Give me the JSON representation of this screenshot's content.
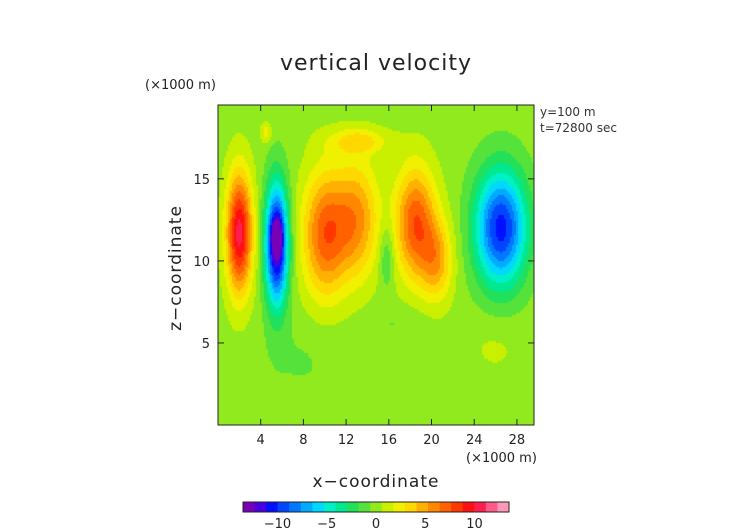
{
  "chart_data": {
    "type": "heatmap",
    "title": "vertical velocity",
    "xlabel": "x−coordinate",
    "ylabel": "z−coordinate",
    "x_unit": "(×1000 m)",
    "y_unit": "(×1000 m)",
    "annotations": [
      "y=100 m",
      "t=72800 sec"
    ],
    "xlim": [
      0,
      29.6
    ],
    "ylim": [
      0,
      19.5
    ],
    "x_ticks": [
      {
        "value": 4,
        "label": "4"
      },
      {
        "value": 8,
        "label": "8"
      },
      {
        "value": 12,
        "label": "12"
      },
      {
        "value": 16,
        "label": "16"
      },
      {
        "value": 20,
        "label": "20"
      },
      {
        "value": 24,
        "label": "24"
      },
      {
        "value": 28,
        "label": "28"
      }
    ],
    "y_ticks": [
      {
        "value": 5,
        "label": "5"
      },
      {
        "value": 10,
        "label": "10"
      },
      {
        "value": 15,
        "label": "15"
      }
    ],
    "colorbar": {
      "min": -13.5,
      "max": 13.5,
      "tick_values": [
        -10,
        -5,
        0,
        5,
        10
      ],
      "tick_labels": [
        "−10",
        "−5",
        "0",
        "5",
        "10"
      ],
      "colors": [
        "#7a00b8",
        "#4a00e0",
        "#0010ff",
        "#0046ff",
        "#0078ff",
        "#00aaff",
        "#00d8ff",
        "#00f0c8",
        "#00e890",
        "#22e05a",
        "#55e23a",
        "#90ea1e",
        "#c8f000",
        "#f0f000",
        "#ffd800",
        "#ffb000",
        "#ff8800",
        "#ff6000",
        "#ff3800",
        "#ff1010",
        "#ff1e50",
        "#ff5a8a",
        "#ff98b8"
      ]
    },
    "features": [
      {
        "x": 2.0,
        "z": 11.7,
        "sx": 1.2,
        "sz": 3.6,
        "amp": 10.5
      },
      {
        "x": 5.5,
        "z": 11.0,
        "sx": 1.05,
        "sz": 3.6,
        "amp": -13.0
      },
      {
        "x": 5.5,
        "z": 11.5,
        "sx": 0.5,
        "sz": 1.0,
        "amp": -4.5
      },
      {
        "x": 10.0,
        "z": 11.6,
        "sx": 2.1,
        "sz": 3.8,
        "amp": 7.0
      },
      {
        "x": 13.0,
        "z": 12.5,
        "sx": 2.1,
        "sz": 3.6,
        "amp": 5.5
      },
      {
        "x": 18.5,
        "z": 12.3,
        "sx": 1.9,
        "sz": 3.4,
        "amp": 7.5
      },
      {
        "x": 20.5,
        "z": 10.0,
        "sx": 1.5,
        "sz": 2.5,
        "amp": 4.5
      },
      {
        "x": 15.8,
        "z": 10.3,
        "sx": 0.7,
        "sz": 2.0,
        "amp": -2.5
      },
      {
        "x": 13.2,
        "z": 17.3,
        "sx": 2.8,
        "sz": 0.8,
        "amp": 3.0
      },
      {
        "x": 26.5,
        "z": 12.0,
        "sx": 2.4,
        "sz": 3.5,
        "amp": -10.5
      },
      {
        "x": 4.5,
        "z": 17.8,
        "sx": 0.5,
        "sz": 0.6,
        "amp": 2.5
      },
      {
        "x": 26.0,
        "z": 4.8,
        "sx": 3.0,
        "sz": 2.0,
        "amp": 0.8
      },
      {
        "x": 8.0,
        "z": 4.0,
        "sx": 4.0,
        "sz": 2.5,
        "amp": -0.7
      },
      {
        "x": 17.0,
        "z": 6.2,
        "sx": 3.0,
        "sz": 1.2,
        "amp": -0.7
      }
    ]
  }
}
